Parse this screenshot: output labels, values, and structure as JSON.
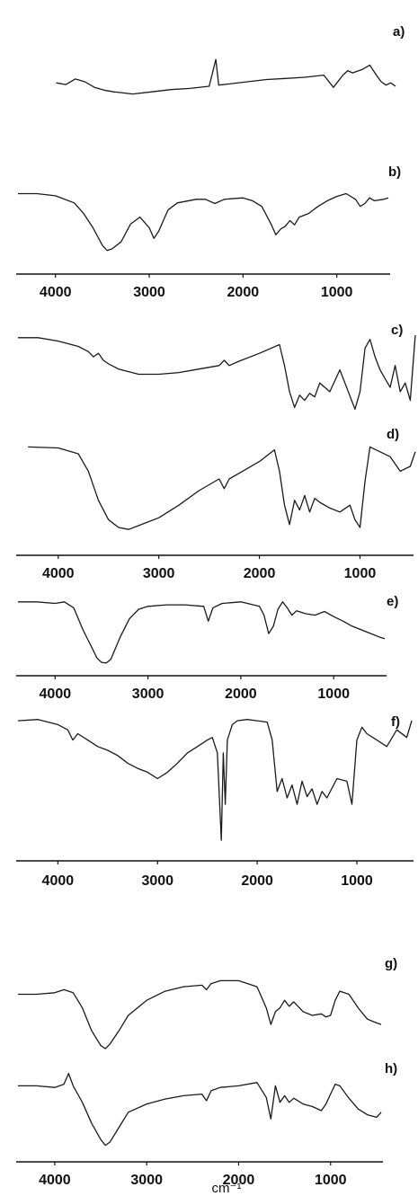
{
  "figure": {
    "x_unit": "cm⁻¹"
  },
  "chart_data": [
    {
      "type": "line",
      "panel": "a)",
      "x": [
        4000,
        3900,
        3800,
        3700,
        3600,
        3500,
        3400,
        3300,
        3200,
        3000,
        2800,
        2600,
        2400,
        2330,
        2300,
        2200,
        2000,
        1800,
        1600,
        1400,
        1200,
        1100,
        1000,
        950,
        900,
        800,
        720,
        650,
        600,
        550,
        500,
        450
      ],
      "values": [
        48,
        45,
        55,
        50,
        40,
        35,
        32,
        30,
        28,
        32,
        36,
        38,
        42,
        90,
        44,
        46,
        50,
        54,
        56,
        58,
        62,
        40,
        62,
        70,
        66,
        72,
        80,
        62,
        50,
        44,
        48,
        42
      ],
      "xlim": [
        4400,
        450
      ]
    },
    {
      "type": "line",
      "panel": "b)",
      "x": [
        4400,
        4200,
        4000,
        3800,
        3700,
        3600,
        3500,
        3450,
        3400,
        3300,
        3200,
        3100,
        3000,
        2950,
        2900,
        2850,
        2800,
        2700,
        2500,
        2400,
        2300,
        2200,
        2000,
        1900,
        1800,
        1700,
        1650,
        1600,
        1550,
        1500,
        1450,
        1400,
        1300,
        1200,
        1100,
        1000,
        900,
        800,
        750,
        700,
        650,
        600,
        500,
        450
      ],
      "values": [
        88,
        88,
        85,
        75,
        60,
        40,
        15,
        8,
        10,
        20,
        45,
        55,
        40,
        25,
        35,
        50,
        65,
        75,
        80,
        80,
        74,
        80,
        82,
        78,
        70,
        45,
        30,
        38,
        42,
        50,
        44,
        55,
        60,
        70,
        78,
        84,
        88,
        80,
        70,
        74,
        82,
        78,
        80,
        82
      ],
      "xlim": [
        4400,
        450
      ],
      "x_ticks": [
        4000,
        3000,
        2000,
        1000
      ]
    },
    {
      "type": "line",
      "panel": "c)",
      "x": [
        4400,
        4200,
        4000,
        3800,
        3700,
        3650,
        3600,
        3550,
        3500,
        3400,
        3200,
        3000,
        2800,
        2600,
        2400,
        2350,
        2300,
        2200,
        2000,
        1800,
        1750,
        1700,
        1650,
        1600,
        1550,
        1500,
        1450,
        1400,
        1300,
        1200,
        1100,
        1050,
        1000,
        950,
        900,
        850,
        800,
        750,
        700,
        650,
        600,
        550,
        500,
        450
      ],
      "values": [
        92,
        92,
        88,
        82,
        76,
        70,
        74,
        66,
        62,
        56,
        50,
        50,
        52,
        56,
        60,
        66,
        60,
        65,
        74,
        84,
        60,
        30,
        12,
        26,
        20,
        28,
        24,
        40,
        30,
        55,
        25,
        10,
        30,
        80,
        90,
        70,
        55,
        45,
        35,
        60,
        30,
        40,
        20,
        95
      ],
      "xlim": [
        4400,
        450
      ]
    },
    {
      "type": "line",
      "panel": "d)",
      "x": [
        4300,
        4000,
        3800,
        3700,
        3600,
        3500,
        3400,
        3300,
        3200,
        3000,
        2800,
        2600,
        2400,
        2350,
        2300,
        2200,
        2000,
        1850,
        1800,
        1750,
        1700,
        1650,
        1600,
        1550,
        1500,
        1450,
        1400,
        1300,
        1200,
        1100,
        1050,
        1000,
        950,
        900,
        800,
        700,
        600,
        500,
        450
      ],
      "values": [
        95,
        94,
        88,
        70,
        40,
        20,
        12,
        10,
        14,
        22,
        35,
        50,
        62,
        52,
        62,
        68,
        80,
        92,
        70,
        35,
        15,
        40,
        30,
        45,
        28,
        42,
        38,
        32,
        28,
        35,
        20,
        12,
        60,
        95,
        90,
        85,
        70,
        75,
        90
      ],
      "xlim": [
        4400,
        450
      ],
      "x_ticks": [
        4000,
        3000,
        2000,
        1000
      ]
    },
    {
      "type": "line",
      "panel": "e)",
      "x": [
        4400,
        4200,
        4000,
        3900,
        3800,
        3700,
        3600,
        3550,
        3500,
        3450,
        3400,
        3300,
        3200,
        3100,
        3000,
        2800,
        2600,
        2400,
        2350,
        2300,
        2200,
        2000,
        1800,
        1750,
        1700,
        1650,
        1600,
        1550,
        1500,
        1450,
        1400,
        1300,
        1200,
        1100,
        1000,
        900,
        800,
        700,
        600,
        500,
        450
      ],
      "values": [
        88,
        88,
        86,
        88,
        80,
        50,
        25,
        12,
        6,
        5,
        10,
        40,
        65,
        78,
        82,
        84,
        84,
        82,
        62,
        80,
        86,
        88,
        82,
        70,
        45,
        55,
        78,
        88,
        80,
        70,
        76,
        72,
        70,
        75,
        68,
        62,
        55,
        50,
        45,
        40,
        38
      ],
      "xlim": [
        4400,
        450
      ],
      "x_ticks": [
        4000,
        3000,
        2000,
        1000
      ]
    },
    {
      "type": "line",
      "panel": "f)",
      "x": [
        4400,
        4200,
        4000,
        3900,
        3850,
        3800,
        3700,
        3600,
        3500,
        3400,
        3300,
        3200,
        3100,
        3000,
        2900,
        2800,
        2700,
        2600,
        2500,
        2450,
        2400,
        2360,
        2340,
        2320,
        2300,
        2250,
        2200,
        2100,
        2000,
        1900,
        1850,
        1800,
        1750,
        1700,
        1650,
        1600,
        1550,
        1500,
        1450,
        1400,
        1350,
        1300,
        1200,
        1100,
        1050,
        1000,
        950,
        900,
        800,
        700,
        600,
        500,
        450
      ],
      "values": [
        95,
        96,
        92,
        88,
        80,
        85,
        80,
        75,
        72,
        68,
        62,
        58,
        55,
        50,
        55,
        62,
        70,
        75,
        80,
        82,
        70,
        2,
        70,
        30,
        80,
        92,
        95,
        96,
        95,
        94,
        80,
        40,
        50,
        35,
        45,
        30,
        48,
        36,
        42,
        30,
        40,
        35,
        50,
        48,
        30,
        80,
        90,
        85,
        80,
        75,
        88,
        82,
        95
      ],
      "xlim": [
        4400,
        450
      ],
      "x_ticks": [
        4000,
        3000,
        2000,
        1000
      ]
    },
    {
      "type": "line",
      "panel": "g)",
      "x": [
        4400,
        4200,
        4000,
        3900,
        3800,
        3700,
        3600,
        3500,
        3450,
        3400,
        3300,
        3200,
        3000,
        2800,
        2600,
        2400,
        2350,
        2300,
        2200,
        2000,
        1800,
        1700,
        1650,
        1600,
        1550,
        1500,
        1450,
        1400,
        1300,
        1200,
        1100,
        1050,
        1000,
        950,
        900,
        800,
        700,
        600,
        500,
        450
      ],
      "values": [
        78,
        78,
        80,
        84,
        80,
        60,
        30,
        10,
        6,
        12,
        30,
        50,
        70,
        82,
        88,
        90,
        84,
        92,
        96,
        96,
        88,
        60,
        38,
        55,
        60,
        70,
        62,
        68,
        55,
        50,
        52,
        48,
        50,
        70,
        82,
        78,
        60,
        45,
        40,
        38
      ],
      "xlim": [
        4400,
        450
      ]
    },
    {
      "type": "line",
      "panel": "h)",
      "x": [
        4400,
        4200,
        4000,
        3900,
        3850,
        3800,
        3700,
        3600,
        3500,
        3450,
        3400,
        3300,
        3200,
        3000,
        2800,
        2600,
        2400,
        2350,
        2300,
        2200,
        2000,
        1800,
        1700,
        1650,
        1600,
        1550,
        1500,
        1450,
        1400,
        1300,
        1200,
        1100,
        1050,
        1000,
        950,
        900,
        800,
        700,
        600,
        500,
        450
      ],
      "values": [
        80,
        80,
        78,
        82,
        95,
        80,
        60,
        35,
        15,
        8,
        12,
        30,
        48,
        58,
        64,
        68,
        70,
        62,
        74,
        78,
        80,
        84,
        66,
        40,
        80,
        60,
        68,
        60,
        65,
        58,
        55,
        50,
        58,
        70,
        82,
        80,
        65,
        52,
        45,
        42,
        48
      ],
      "xlim": [
        4400,
        450
      ],
      "x_ticks": [
        4000,
        3000,
        2000,
        1000
      ]
    }
  ]
}
